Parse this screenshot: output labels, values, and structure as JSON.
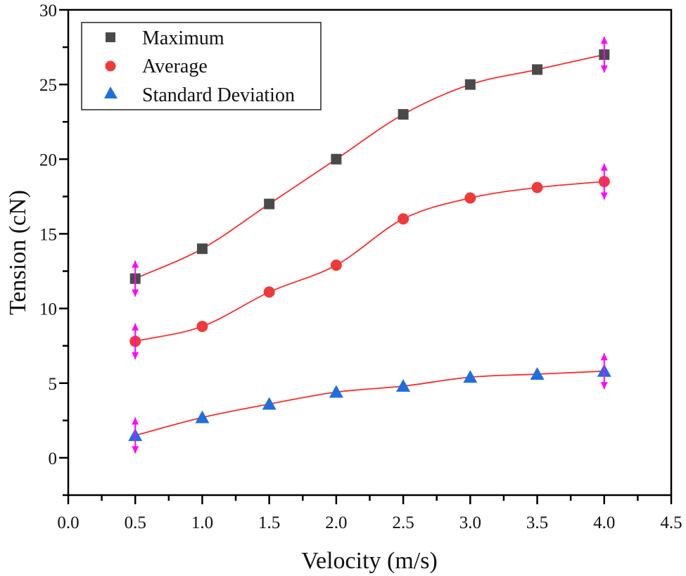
{
  "chart_data": {
    "type": "scatter",
    "title": "",
    "xlabel": "Velocity (m/s)",
    "ylabel": "Tension (cN)",
    "xlim": [
      0.0,
      4.5
    ],
    "ylim": [
      -2.5,
      30
    ],
    "xticks": [
      0.0,
      0.5,
      1.0,
      1.5,
      2.0,
      2.5,
      3.0,
      3.5,
      4.0,
      4.5
    ],
    "xtick_labels": [
      "0.0",
      "0.5",
      "1.0",
      "1.5",
      "2.0",
      "2.5",
      "3.0",
      "3.5",
      "4.0",
      "4.5"
    ],
    "yticks": [
      0,
      5,
      10,
      15,
      20,
      25,
      30
    ],
    "ytick_labels": [
      "0",
      "5",
      "10",
      "15",
      "20",
      "25",
      "30"
    ],
    "grid": false,
    "legend_position": "top-left",
    "x": [
      0.5,
      1.0,
      1.5,
      2.0,
      2.5,
      3.0,
      3.5,
      4.0
    ],
    "series": [
      {
        "name": "Maximum",
        "marker": "square",
        "color": "#4a4a4a",
        "values": [
          12,
          14,
          17,
          20,
          23,
          25,
          26,
          27
        ]
      },
      {
        "name": "Average",
        "marker": "circle",
        "color": "#f03a3a",
        "values": [
          7.8,
          8.8,
          11.1,
          12.9,
          16.0,
          17.4,
          18.1,
          18.5
        ]
      },
      {
        "name": "Standard Deviation",
        "marker": "triangle",
        "color": "#1f6fe0",
        "values": [
          1.5,
          2.7,
          3.6,
          4.4,
          4.8,
          5.4,
          5.6,
          5.8
        ]
      }
    ],
    "fit_line_color": "#ff2a2a",
    "error_bar_color": "#ff00ff",
    "error_bars": {
      "x": [
        0.5,
        4.0
      ],
      "half_range": 1.2
    }
  }
}
